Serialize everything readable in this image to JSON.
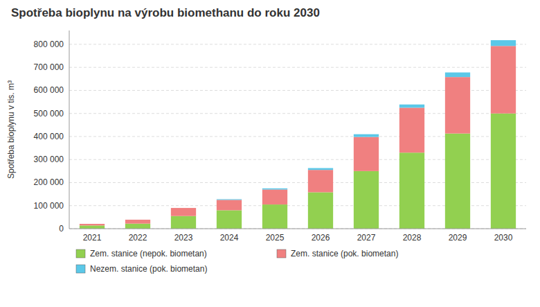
{
  "chart_data": {
    "type": "bar",
    "stacked": true,
    "title": "Spotřeba bioplynu na výrobu biomethanu do roku 2030",
    "ylabel": "Spotřeba bioplynu v tis. m³",
    "categories": [
      "2021",
      "2022",
      "2023",
      "2024",
      "2025",
      "2026",
      "2027",
      "2028",
      "2029",
      "2030"
    ],
    "series": [
      {
        "name": "Zem. stanice (nepok. biometan)",
        "color": "#92d050",
        "values": [
          14000,
          22000,
          55000,
          80000,
          105000,
          158000,
          250000,
          330000,
          413000,
          500000
        ]
      },
      {
        "name": "Zem. stanice (pok. biometan)",
        "color": "#f08080",
        "values": [
          7000,
          17000,
          35000,
          45000,
          65000,
          97000,
          148000,
          195000,
          245000,
          293000
        ]
      },
      {
        "name": "Nezem. stanice (pok. biometan)",
        "color": "#5bc8e8",
        "values": [
          0,
          0,
          0,
          3000,
          5000,
          8000,
          12000,
          14000,
          20000,
          25000
        ]
      }
    ],
    "ylim": [
      0,
      860000
    ],
    "yticks": [
      0,
      {
        "value": 100000,
        "label": "100 000"
      },
      {
        "value": 200000,
        "label": "200 000"
      },
      {
        "value": 300000,
        "label": "300 000"
      },
      {
        "value": 400000,
        "label": "400 000"
      },
      {
        "value": 500000,
        "label": "500 000"
      },
      {
        "value": 600000,
        "label": "600 000"
      },
      {
        "value": 700000,
        "label": "700 000"
      },
      {
        "value": 800000,
        "label": "800 000"
      }
    ],
    "grid": true,
    "legend": "bottom"
  }
}
